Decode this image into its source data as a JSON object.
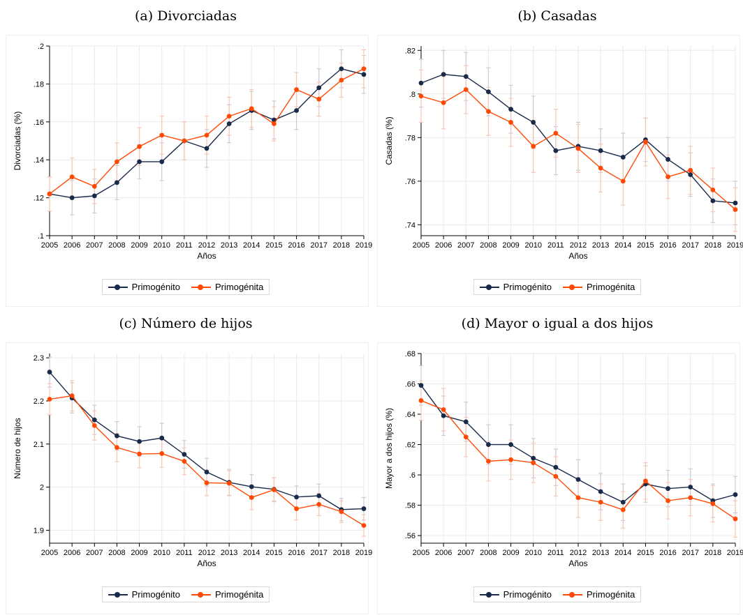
{
  "panels": [
    {
      "title": "(a) Divorciadas"
    },
    {
      "title": "(b) Casadas"
    },
    {
      "title": "(c) Número de hijos"
    },
    {
      "title": "(d) Mayor o igual a dos hijos"
    }
  ],
  "legend": {
    "series_a": "Primogénito",
    "series_b": "Primogénita"
  },
  "colors": {
    "primogenito": "#1a2a4a",
    "primogenita": "#ff4a06",
    "ci_a": "#c8ccd6",
    "ci_b": "#f6c6b6",
    "grid": "#eaeaea"
  },
  "chart_data": [
    {
      "type": "line",
      "title": "(a) Divorciadas",
      "xlabel": "Años",
      "ylabel": "Divorciadas (%)",
      "x": [
        2005,
        2006,
        2007,
        2008,
        2009,
        2010,
        2011,
        2012,
        2013,
        2014,
        2015,
        2016,
        2017,
        2018,
        2019
      ],
      "ylim": [
        0.1,
        0.2
      ],
      "yticks": [
        0.1,
        0.12,
        0.14,
        0.16,
        0.18,
        0.2
      ],
      "yticklabels": [
        ".1",
        ".12",
        ".14",
        ".16",
        ".18",
        ".2"
      ],
      "grid": true,
      "legend_position": "bottom",
      "series": [
        {
          "name": "Primogénito",
          "values": [
            0.122,
            0.12,
            0.121,
            0.128,
            0.139,
            0.139,
            0.15,
            0.146,
            0.159,
            0.166,
            0.161,
            0.166,
            0.178,
            0.188,
            0.185
          ],
          "ci": [
            0.009,
            0.009,
            0.009,
            0.009,
            0.009,
            0.01,
            0.01,
            0.01,
            0.01,
            0.01,
            0.01,
            0.01,
            0.01,
            0.01,
            0.01
          ]
        },
        {
          "name": "Primogénita",
          "values": [
            0.122,
            0.131,
            0.126,
            0.139,
            0.147,
            0.153,
            0.15,
            0.153,
            0.163,
            0.167,
            0.159,
            0.177,
            0.172,
            0.182,
            0.188
          ],
          "ci": [
            0.009,
            0.01,
            0.009,
            0.01,
            0.01,
            0.01,
            0.01,
            0.01,
            0.01,
            0.01,
            0.009,
            0.009,
            0.009,
            0.009,
            0.01
          ]
        }
      ]
    },
    {
      "type": "line",
      "title": "(b) Casadas",
      "xlabel": "Años",
      "ylabel": "Casadas (%)",
      "x": [
        2005,
        2006,
        2007,
        2008,
        2009,
        2010,
        2011,
        2012,
        2013,
        2014,
        2015,
        2016,
        2017,
        2018,
        2019
      ],
      "ylim": [
        0.735,
        0.822
      ],
      "yticks": [
        0.74,
        0.76,
        0.78,
        0.8,
        0.82
      ],
      "yticklabels": [
        ".74",
        ".76",
        ".78",
        ".8",
        ".82"
      ],
      "grid": true,
      "legend_position": "bottom",
      "series": [
        {
          "name": "Primogénito",
          "values": [
            0.805,
            0.809,
            0.808,
            0.801,
            0.793,
            0.787,
            0.774,
            0.776,
            0.774,
            0.771,
            0.779,
            0.77,
            0.763,
            0.751,
            0.75
          ],
          "ci": [
            0.011,
            0.011,
            0.011,
            0.011,
            0.011,
            0.012,
            0.011,
            0.011,
            0.01,
            0.011,
            0.01,
            0.01,
            0.01,
            0.01,
            0.01
          ]
        },
        {
          "name": "Primogénita",
          "values": [
            0.799,
            0.796,
            0.802,
            0.792,
            0.787,
            0.776,
            0.782,
            0.775,
            0.766,
            0.76,
            0.778,
            0.762,
            0.765,
            0.756,
            0.747
          ],
          "ci": [
            0.012,
            0.012,
            0.011,
            0.011,
            0.011,
            0.012,
            0.011,
            0.011,
            0.011,
            0.011,
            0.011,
            0.01,
            0.011,
            0.01,
            0.01
          ]
        }
      ]
    },
    {
      "type": "line",
      "title": "(c) Número de hijos",
      "xlabel": "Años",
      "ylabel": "Número de hijos",
      "x": [
        2005,
        2006,
        2007,
        2008,
        2009,
        2010,
        2011,
        2012,
        2013,
        2014,
        2015,
        2016,
        2017,
        2018,
        2019
      ],
      "ylim": [
        1.87,
        2.31
      ],
      "yticks": [
        1.9,
        2.0,
        2.1,
        2.2,
        2.3
      ],
      "yticklabels": [
        "1.9",
        "2",
        "2.1",
        "2.2",
        "2.3"
      ],
      "grid": true,
      "legend_position": "bottom",
      "series": [
        {
          "name": "Primogénito",
          "values": [
            2.267,
            2.207,
            2.156,
            2.119,
            2.106,
            2.114,
            2.076,
            2.035,
            2.011,
            2.001,
            1.995,
            1.977,
            1.98,
            1.948,
            1.95
          ],
          "ci": [
            0.035,
            0.035,
            0.034,
            0.033,
            0.034,
            0.034,
            0.032,
            0.032,
            0.03,
            0.028,
            0.027,
            0.026,
            0.027,
            0.026,
            0.026
          ]
        },
        {
          "name": "Primogénita",
          "values": [
            2.204,
            2.212,
            2.143,
            2.092,
            2.077,
            2.078,
            2.06,
            2.01,
            2.009,
            1.976,
            1.994,
            1.95,
            1.96,
            1.943,
            1.911
          ],
          "ci": [
            0.036,
            0.035,
            0.034,
            0.033,
            0.032,
            0.032,
            0.031,
            0.03,
            0.029,
            0.028,
            0.028,
            0.026,
            0.026,
            0.025,
            0.025
          ]
        }
      ]
    },
    {
      "type": "line",
      "title": "(d) Mayor o igual a dos hijos",
      "xlabel": "Años",
      "ylabel": "Mayor a dos hijos (%)",
      "x": [
        2005,
        2006,
        2007,
        2008,
        2009,
        2010,
        2011,
        2012,
        2013,
        2014,
        2015,
        2016,
        2017,
        2018,
        2019
      ],
      "ylim": [
        0.555,
        0.68
      ],
      "yticks": [
        0.56,
        0.58,
        0.6,
        0.62,
        0.64,
        0.66,
        0.68
      ],
      "yticklabels": [
        ".56",
        ".58",
        ".6",
        ".62",
        ".64",
        ".66",
        ".68"
      ],
      "grid": true,
      "legend_position": "bottom",
      "series": [
        {
          "name": "Primogénito",
          "values": [
            0.659,
            0.639,
            0.635,
            0.62,
            0.62,
            0.611,
            0.605,
            0.597,
            0.589,
            0.582,
            0.594,
            0.591,
            0.592,
            0.583,
            0.587
          ],
          "ci": [
            0.013,
            0.013,
            0.013,
            0.013,
            0.013,
            0.013,
            0.012,
            0.013,
            0.012,
            0.012,
            0.012,
            0.012,
            0.012,
            0.011,
            0.012
          ]
        },
        {
          "name": "Primogénita",
          "values": [
            0.649,
            0.643,
            0.625,
            0.609,
            0.61,
            0.608,
            0.599,
            0.585,
            0.582,
            0.577,
            0.596,
            0.583,
            0.585,
            0.581,
            0.571
          ],
          "ci": [
            0.013,
            0.014,
            0.013,
            0.013,
            0.013,
            0.013,
            0.013,
            0.013,
            0.012,
            0.012,
            0.012,
            0.012,
            0.012,
            0.012,
            0.012
          ]
        }
      ]
    }
  ]
}
